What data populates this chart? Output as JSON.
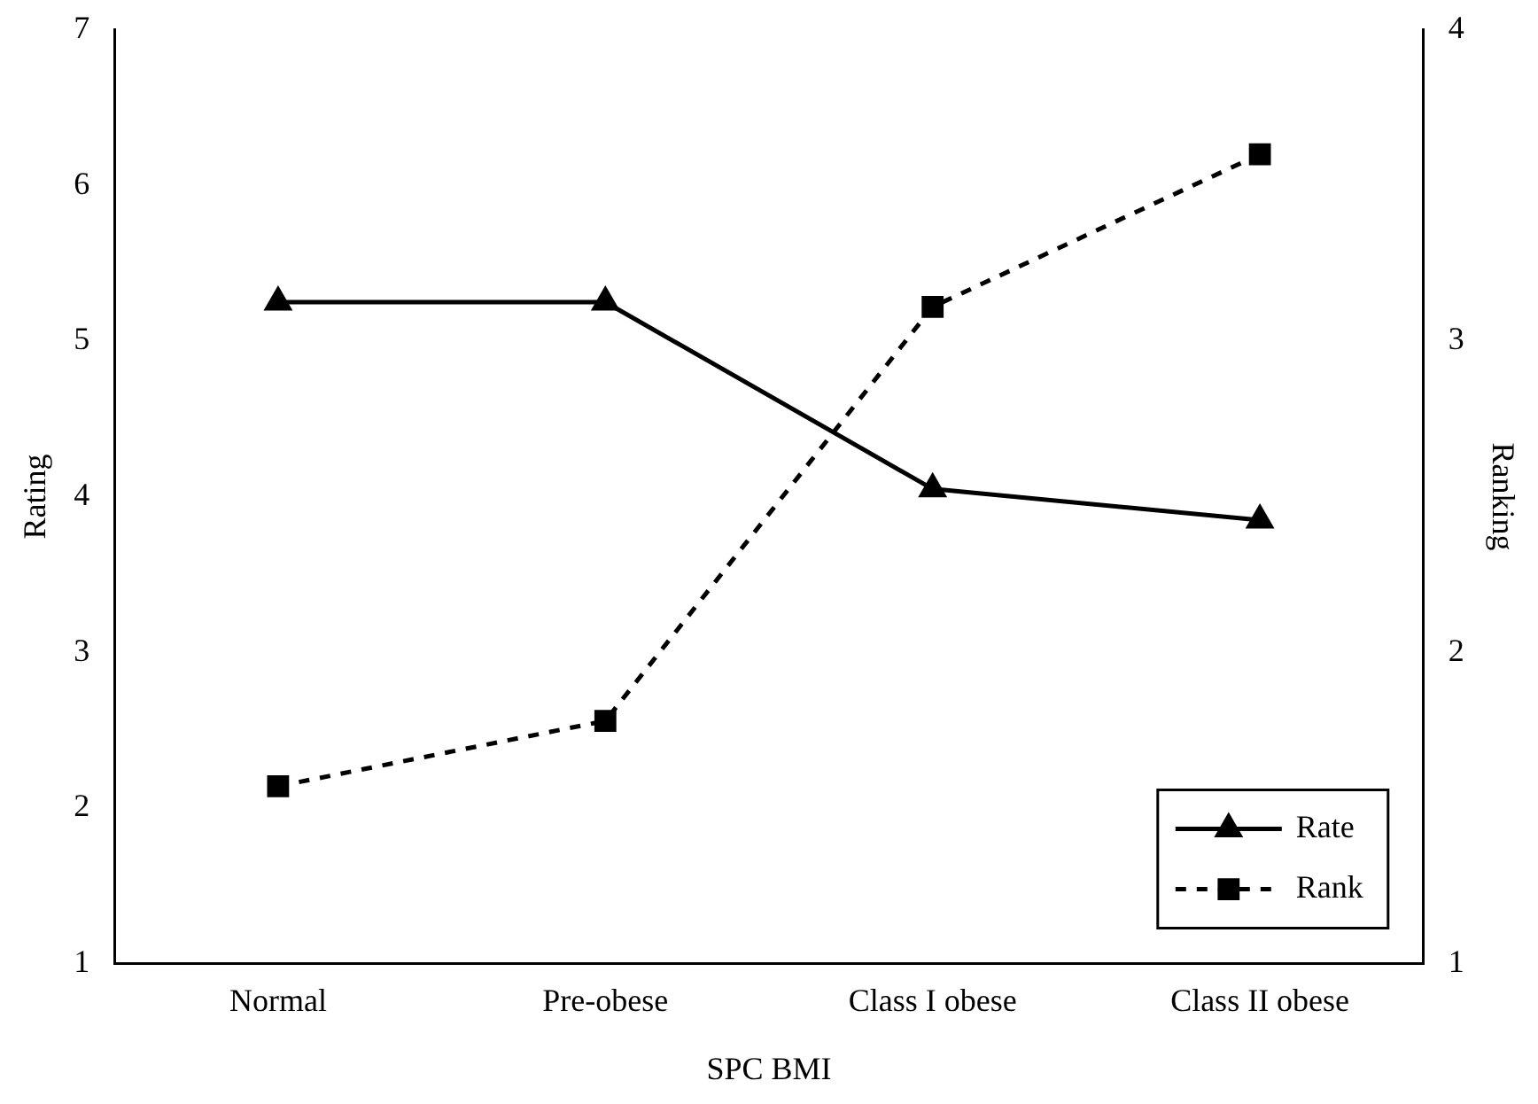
{
  "chart_data": {
    "type": "line",
    "xlabel": "SPC BMI",
    "ylabel": "Rating",
    "y2label": "Ranking",
    "categories": [
      "Normal",
      "Pre-obese",
      "Class I obese",
      "Class II obese"
    ],
    "series": [
      {
        "name": "Rate",
        "color": "#000000",
        "values": [
          5.25,
          5.25,
          4.05,
          3.85
        ],
        "marker": "triangle",
        "line_style": "solid"
      },
      {
        "name": "Rank",
        "color": "#000000",
        "values": [
          1.57,
          1.78,
          3.11,
          3.6
        ],
        "axis": "y2",
        "marker": "square",
        "line_style": "dashed"
      }
    ],
    "ylim": [
      1,
      7
    ],
    "yticks": [
      1,
      2,
      3,
      4,
      5,
      6,
      7
    ],
    "y2lim": [
      1,
      4
    ],
    "y2ticks": [
      1,
      2,
      3,
      4
    ],
    "grid": false,
    "legend": "bottom right"
  }
}
